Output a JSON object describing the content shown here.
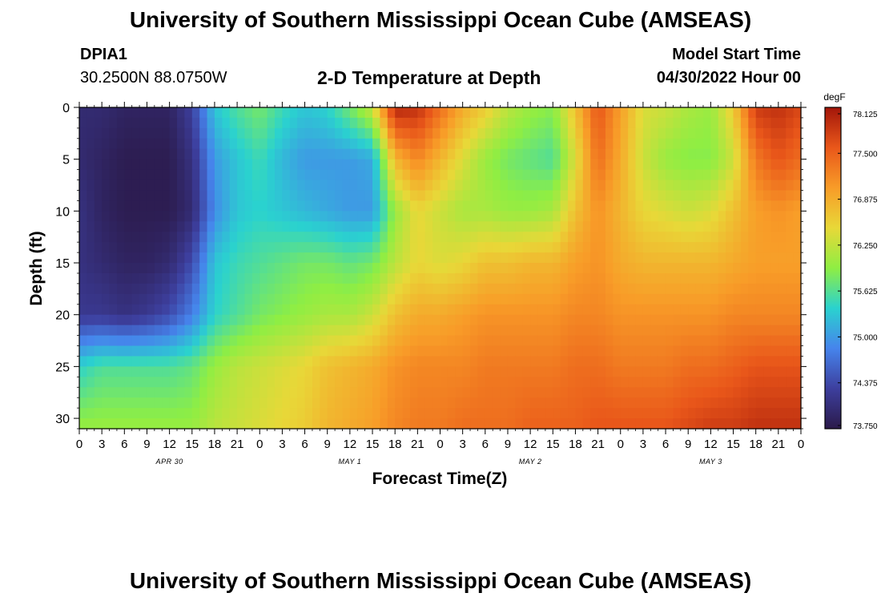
{
  "header": {
    "title": "University of Southern Mississippi Ocean Cube (AMSEAS)",
    "station_id": "DPIA1",
    "station_coords": "30.2500N  88.0750W",
    "chart_title": "2-D Temperature at Depth",
    "model_start_label": "Model Start Time",
    "model_start_value": "04/30/2022 Hour 00"
  },
  "footer": {
    "title": "University of Southern Mississippi Ocean Cube (AMSEAS)"
  },
  "chart_data": {
    "type": "heatmap",
    "title": "2-D Temperature at Depth",
    "xlabel": "Forecast Time(Z)",
    "ylabel": "Depth (ft)",
    "x_tick_labels": [
      "0",
      "3",
      "6",
      "9",
      "12",
      "15",
      "18",
      "21",
      "0",
      "3",
      "6",
      "9",
      "12",
      "15",
      "18",
      "21",
      "0",
      "3",
      "6",
      "9",
      "12",
      "15",
      "18",
      "21",
      "0",
      "3",
      "6",
      "9",
      "12",
      "15",
      "18",
      "21",
      "0"
    ],
    "x_hours": [
      0,
      3,
      6,
      9,
      12,
      15,
      18,
      21,
      24,
      27,
      30,
      33,
      36,
      39,
      42,
      45,
      48,
      51,
      54,
      57,
      60,
      63,
      66,
      69,
      72,
      75,
      78,
      81,
      84,
      87,
      90,
      93,
      96
    ],
    "day_labels": [
      {
        "text": "APR 30",
        "hour": 12
      },
      {
        "text": "MAY 1",
        "hour": 36
      },
      {
        "text": "MAY 2",
        "hour": 60
      },
      {
        "text": "MAY 3",
        "hour": 84
      }
    ],
    "xlim": [
      0,
      96
    ],
    "y_ticks": [
      0,
      5,
      10,
      15,
      20,
      25,
      30
    ],
    "ylim": [
      0,
      31
    ],
    "colorbar": {
      "unit": "degF",
      "ticks": [
        78.125,
        77.5,
        76.875,
        76.25,
        75.625,
        75.0,
        74.375,
        73.75
      ],
      "tick_labels": [
        "78.125",
        "77.500",
        "76.875",
        "76.250",
        "75.625",
        "75.000",
        "74.375",
        "73.750"
      ],
      "min": 73.75,
      "max": 78.125,
      "colors": [
        "#2b1a4a",
        "#3d3f9e",
        "#4684ec",
        "#2ad2cf",
        "#8fee43",
        "#e8d838",
        "#f89c28",
        "#e9571a",
        "#a3160a"
      ]
    },
    "depths_ft": [
      0,
      5,
      10,
      15,
      20,
      25,
      31
    ],
    "hours": [
      0,
      3,
      6,
      9,
      12,
      15,
      18,
      21,
      24,
      27,
      30,
      33,
      36,
      39,
      42,
      45,
      48,
      51,
      54,
      57,
      60,
      63,
      66,
      69,
      72,
      75,
      78,
      81,
      84,
      87,
      90,
      93,
      96
    ],
    "values": [
      [
        74.0,
        74.0,
        73.9,
        73.9,
        73.9,
        74.3,
        75.3,
        75.6,
        75.8,
        75.5,
        75.3,
        75.4,
        75.8,
        76.3,
        78.0,
        77.9,
        77.4,
        76.9,
        76.6,
        76.2,
        76.0,
        75.9,
        76.7,
        77.6,
        77.0,
        76.4,
        76.3,
        76.1,
        76.0,
        76.6,
        77.8,
        77.9,
        77.7
      ],
      [
        74.0,
        73.9,
        73.8,
        73.8,
        73.8,
        74.1,
        75.0,
        75.3,
        75.5,
        75.2,
        75.0,
        75.0,
        75.0,
        75.1,
        76.8,
        77.2,
        76.8,
        76.4,
        76.0,
        75.8,
        75.7,
        75.6,
        76.4,
        77.4,
        76.9,
        76.3,
        76.0,
        75.9,
        75.9,
        76.3,
        77.3,
        77.6,
        77.4
      ],
      [
        74.1,
        73.9,
        73.8,
        73.8,
        73.8,
        74.0,
        74.9,
        75.3,
        75.4,
        75.3,
        75.2,
        75.1,
        75.0,
        75.0,
        76.0,
        76.5,
        76.3,
        76.1,
        76.1,
        76.0,
        76.0,
        76.1,
        76.7,
        77.1,
        76.8,
        76.5,
        76.4,
        76.3,
        76.4,
        76.7,
        77.0,
        77.1,
        77.0
      ],
      [
        74.1,
        74.0,
        73.9,
        73.9,
        74.0,
        74.4,
        75.3,
        75.5,
        75.6,
        75.7,
        75.8,
        75.8,
        75.7,
        75.8,
        76.2,
        76.5,
        76.4,
        76.5,
        76.7,
        76.7,
        76.8,
        76.8,
        77.0,
        77.1,
        76.9,
        76.8,
        76.8,
        76.8,
        76.8,
        76.9,
        77.0,
        77.0,
        77.0
      ],
      [
        74.2,
        74.2,
        74.1,
        74.2,
        74.4,
        74.8,
        75.4,
        75.6,
        75.8,
        75.9,
        76.0,
        76.1,
        76.1,
        76.3,
        76.7,
        76.9,
        76.9,
        77.0,
        77.1,
        77.1,
        77.1,
        77.1,
        77.2,
        77.2,
        77.1,
        77.1,
        77.1,
        77.1,
        77.1,
        77.2,
        77.2,
        77.2,
        77.2
      ],
      [
        75.4,
        75.6,
        75.6,
        75.6,
        75.6,
        75.7,
        76.0,
        76.2,
        76.3,
        76.4,
        76.5,
        76.7,
        76.8,
        76.9,
        77.1,
        77.2,
        77.2,
        77.2,
        77.3,
        77.3,
        77.3,
        77.3,
        77.4,
        77.4,
        77.3,
        77.3,
        77.3,
        77.4,
        77.4,
        77.5,
        77.6,
        77.6,
        77.6
      ],
      [
        76.0,
        76.0,
        76.0,
        76.0,
        76.0,
        76.0,
        76.2,
        76.3,
        76.4,
        76.5,
        76.6,
        76.8,
        76.9,
        77.0,
        77.2,
        77.3,
        77.3,
        77.4,
        77.4,
        77.4,
        77.5,
        77.5,
        77.5,
        77.6,
        77.6,
        77.6,
        77.6,
        77.7,
        77.8,
        77.8,
        77.9,
        77.9,
        77.9
      ]
    ]
  }
}
